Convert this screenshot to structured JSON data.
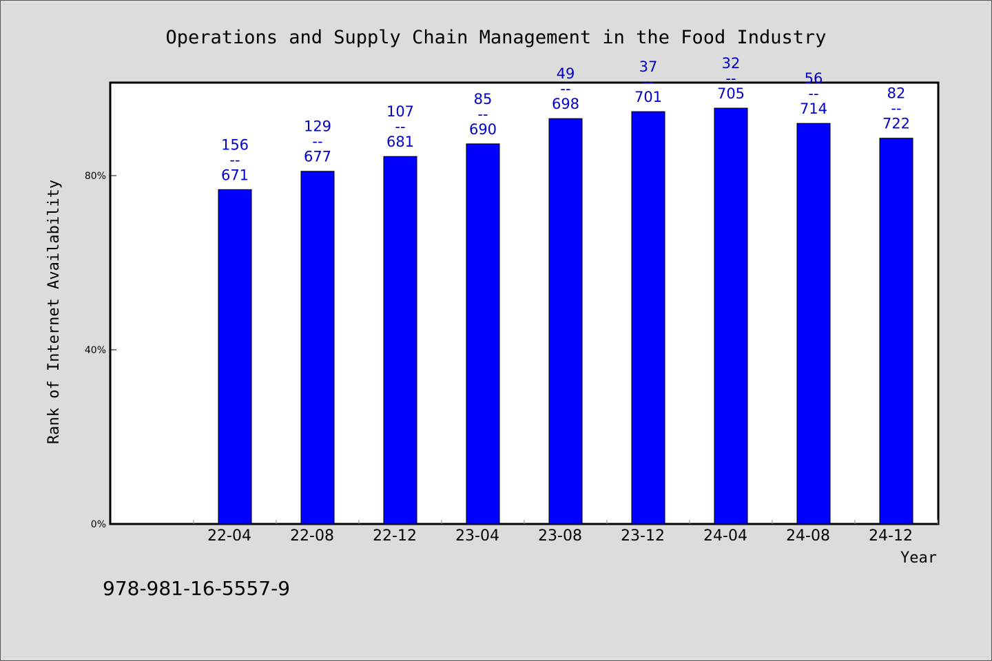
{
  "chart_data": {
    "type": "bar",
    "title": "Operations and Supply Chain Management in the Food Industry",
    "xlabel": "Year",
    "ylabel": "Rank of Internet Availability",
    "categories": [
      "22-04",
      "22-08",
      "22-12",
      "23-04",
      "23-08",
      "23-12",
      "24-04",
      "24-08",
      "24-12"
    ],
    "values": [
      76.8,
      81.0,
      84.4,
      87.3,
      93.1,
      94.7,
      95.5,
      92.0,
      88.6
    ],
    "bar_labels": [
      [
        "156",
        "--",
        "671"
      ],
      [
        "129",
        "--",
        "677"
      ],
      [
        "107",
        "--",
        "681"
      ],
      [
        "85",
        "--",
        "690"
      ],
      [
        "49",
        "--",
        "698"
      ],
      [
        "37",
        "--",
        "701"
      ],
      [
        "32",
        "--",
        "705"
      ],
      [
        "56",
        "--",
        "714"
      ],
      [
        "82",
        "--",
        "722"
      ]
    ],
    "ylim": [
      0,
      100
    ],
    "yticks": [
      {
        "value": 0,
        "label": "0%"
      },
      {
        "value": 40,
        "label": "40%"
      },
      {
        "value": 80,
        "label": "80%"
      }
    ],
    "bar_color": "#0000ff",
    "label_color": "#0000cc",
    "grid": false
  },
  "footer": {
    "isbn": "978-981-16-5557-9"
  }
}
